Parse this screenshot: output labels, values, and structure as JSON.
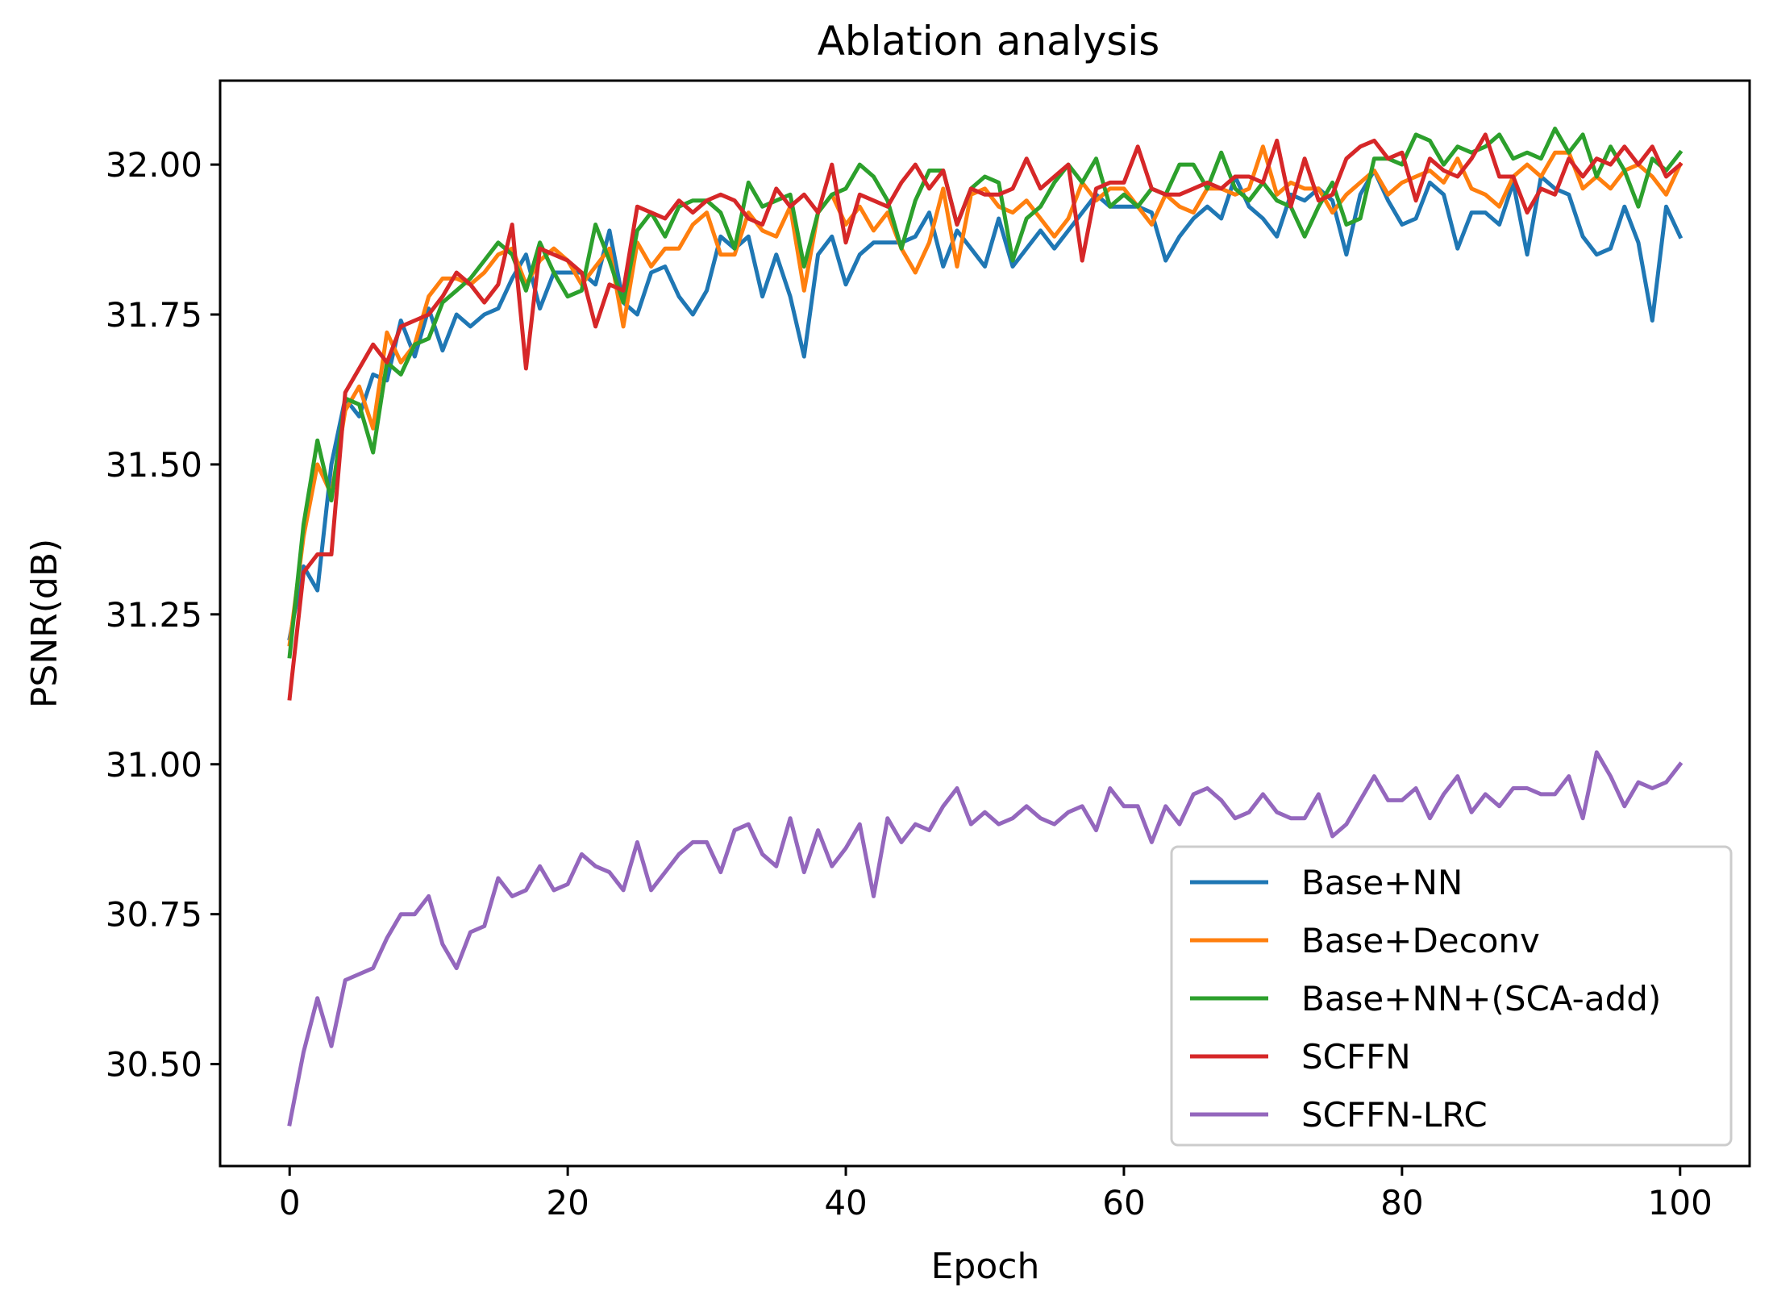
{
  "chart_data": {
    "type": "line",
    "title": "Ablation analysis",
    "xlabel": "Epoch",
    "ylabel": "PSNR(dB)",
    "xlim": [
      -5,
      105
    ],
    "ylim": [
      30.33,
      32.14
    ],
    "xticks": [
      0,
      20,
      40,
      60,
      80,
      100
    ],
    "yticks": [
      30.5,
      30.75,
      31.0,
      31.25,
      31.5,
      31.75,
      32.0
    ],
    "xtick_labels": [
      "0",
      "20",
      "40",
      "60",
      "80",
      "100"
    ],
    "ytick_labels": [
      "30.50",
      "30.75",
      "31.00",
      "31.25",
      "31.50",
      "31.75",
      "32.00"
    ],
    "grid": false,
    "legend_position": "lower-right",
    "x_start": 0,
    "x_step": 1,
    "series": [
      {
        "name": "Base+NN",
        "color": "#1f77b4",
        "values": [
          31.21,
          31.33,
          31.29,
          31.5,
          31.61,
          31.58,
          31.65,
          31.64,
          31.74,
          31.68,
          31.76,
          31.69,
          31.75,
          31.73,
          31.75,
          31.76,
          31.81,
          31.85,
          31.76,
          31.82,
          31.82,
          31.82,
          31.8,
          31.89,
          31.77,
          31.75,
          31.82,
          31.83,
          31.78,
          31.75,
          31.79,
          31.88,
          31.86,
          31.88,
          31.78,
          31.85,
          31.78,
          31.68,
          31.85,
          31.88,
          31.8,
          31.85,
          31.87,
          31.87,
          31.87,
          31.88,
          31.92,
          31.83,
          31.89,
          31.86,
          31.83,
          31.91,
          31.83,
          31.86,
          31.89,
          31.86,
          31.89,
          31.92,
          31.95,
          31.93,
          31.93,
          31.93,
          31.92,
          31.84,
          31.88,
          31.91,
          31.93,
          31.91,
          31.98,
          31.93,
          31.91,
          31.88,
          31.95,
          31.94,
          31.96,
          31.94,
          31.85,
          31.95,
          31.99,
          31.94,
          31.9,
          31.91,
          31.97,
          31.95,
          31.86,
          31.92,
          31.92,
          31.9,
          31.97,
          31.85,
          31.98,
          31.96,
          31.95,
          31.88,
          31.85,
          31.86,
          31.93,
          31.87,
          31.74,
          31.93,
          31.88
        ]
      },
      {
        "name": "Base+Deconv",
        "color": "#ff7f0e",
        "values": [
          31.2,
          31.38,
          31.5,
          31.45,
          31.59,
          31.63,
          31.56,
          31.72,
          31.67,
          31.7,
          31.78,
          31.81,
          31.81,
          31.8,
          31.82,
          31.85,
          31.86,
          31.8,
          31.84,
          31.86,
          31.84,
          31.8,
          31.83,
          31.86,
          31.73,
          31.87,
          31.83,
          31.86,
          31.86,
          31.9,
          31.92,
          31.85,
          31.85,
          31.92,
          31.89,
          31.88,
          31.93,
          31.79,
          31.92,
          31.95,
          31.9,
          31.93,
          31.89,
          31.92,
          31.86,
          31.82,
          31.87,
          31.96,
          31.83,
          31.95,
          31.96,
          31.93,
          31.92,
          31.94,
          31.91,
          31.88,
          31.91,
          31.97,
          31.94,
          31.96,
          31.96,
          31.93,
          31.9,
          31.95,
          31.93,
          31.92,
          31.96,
          31.96,
          31.95,
          31.96,
          32.03,
          31.95,
          31.97,
          31.96,
          31.96,
          31.92,
          31.95,
          31.97,
          31.99,
          31.95,
          31.97,
          31.98,
          31.99,
          31.97,
          32.01,
          31.96,
          31.95,
          31.93,
          31.98,
          32.0,
          31.98,
          32.02,
          32.02,
          31.96,
          31.98,
          31.96,
          31.99,
          32.0,
          31.98,
          31.95,
          32.0
        ]
      },
      {
        "name": "Base+NN+(SCA-add)",
        "color": "#2ca02c",
        "values": [
          31.18,
          31.4,
          31.54,
          31.44,
          31.61,
          31.6,
          31.52,
          31.67,
          31.65,
          31.7,
          31.71,
          31.77,
          31.79,
          31.81,
          31.84,
          31.87,
          31.85,
          31.79,
          31.87,
          31.82,
          31.78,
          31.79,
          31.9,
          31.84,
          31.77,
          31.89,
          31.92,
          31.88,
          31.93,
          31.94,
          31.94,
          31.92,
          31.86,
          31.97,
          31.93,
          31.94,
          31.95,
          31.83,
          31.92,
          31.95,
          31.96,
          32.0,
          31.98,
          31.94,
          31.86,
          31.94,
          31.99,
          31.99,
          31.9,
          31.96,
          31.98,
          31.97,
          31.84,
          31.91,
          31.93,
          31.97,
          32.0,
          31.97,
          32.01,
          31.93,
          31.95,
          31.93,
          31.96,
          31.95,
          32.0,
          32.0,
          31.96,
          32.02,
          31.96,
          31.94,
          31.97,
          31.94,
          31.93,
          31.88,
          31.93,
          31.97,
          31.9,
          31.91,
          32.01,
          32.01,
          32.0,
          32.05,
          32.04,
          32.0,
          32.03,
          32.02,
          32.03,
          32.05,
          32.01,
          32.02,
          32.01,
          32.06,
          32.02,
          32.05,
          31.98,
          32.03,
          31.99,
          31.93,
          32.01,
          31.99,
          32.02
        ]
      },
      {
        "name": "SCFFN",
        "color": "#d62728",
        "values": [
          31.11,
          31.32,
          31.35,
          31.35,
          31.62,
          31.66,
          31.7,
          31.67,
          31.73,
          31.74,
          31.75,
          31.78,
          31.82,
          31.8,
          31.77,
          31.8,
          31.9,
          31.66,
          31.86,
          31.85,
          31.84,
          31.82,
          31.73,
          31.8,
          31.79,
          31.93,
          31.92,
          31.91,
          31.94,
          31.92,
          31.94,
          31.95,
          31.94,
          31.91,
          31.9,
          31.96,
          31.93,
          31.95,
          31.92,
          32.0,
          31.87,
          31.95,
          31.94,
          31.93,
          31.97,
          32.0,
          31.96,
          31.99,
          31.9,
          31.96,
          31.95,
          31.95,
          31.96,
          32.01,
          31.96,
          31.98,
          32.0,
          31.84,
          31.96,
          31.97,
          31.97,
          32.03,
          31.96,
          31.95,
          31.95,
          31.96,
          31.97,
          31.96,
          31.98,
          31.98,
          31.97,
          32.04,
          31.93,
          32.01,
          31.94,
          31.95,
          32.01,
          32.03,
          32.04,
          32.01,
          32.02,
          31.94,
          32.01,
          31.99,
          31.98,
          32.01,
          32.05,
          31.98,
          31.98,
          31.92,
          31.96,
          31.95,
          32.01,
          31.98,
          32.01,
          32.0,
          32.03,
          32.0,
          32.03,
          31.98,
          32.0
        ]
      },
      {
        "name": "SCFFN-LRC",
        "color": "#9467bd",
        "values": [
          30.4,
          30.52,
          30.61,
          30.53,
          30.64,
          30.65,
          30.66,
          30.71,
          30.75,
          30.75,
          30.78,
          30.7,
          30.66,
          30.72,
          30.73,
          30.81,
          30.78,
          30.79,
          30.83,
          30.79,
          30.8,
          30.85,
          30.83,
          30.82,
          30.79,
          30.87,
          30.79,
          30.82,
          30.85,
          30.87,
          30.87,
          30.82,
          30.89,
          30.9,
          30.85,
          30.83,
          30.91,
          30.82,
          30.89,
          30.83,
          30.86,
          30.9,
          30.78,
          30.91,
          30.87,
          30.9,
          30.89,
          30.93,
          30.96,
          30.9,
          30.92,
          30.9,
          30.91,
          30.93,
          30.91,
          30.9,
          30.92,
          30.93,
          30.89,
          30.96,
          30.93,
          30.93,
          30.87,
          30.93,
          30.9,
          30.95,
          30.96,
          30.94,
          30.91,
          30.92,
          30.95,
          30.92,
          30.91,
          30.91,
          30.95,
          30.88,
          30.9,
          30.94,
          30.98,
          30.94,
          30.94,
          30.96,
          30.91,
          30.95,
          30.98,
          30.92,
          30.95,
          30.93,
          30.96,
          30.96,
          30.95,
          30.95,
          30.98,
          30.91,
          31.02,
          30.98,
          30.93,
          30.97,
          30.96,
          30.97,
          31.0
        ]
      }
    ]
  }
}
